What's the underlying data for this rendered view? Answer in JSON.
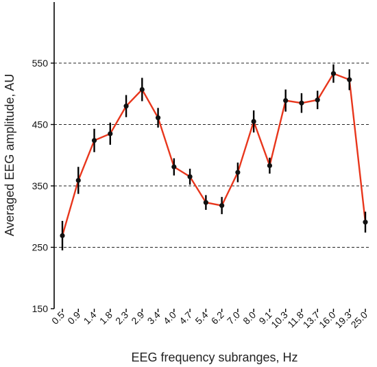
{
  "chart_data": {
    "type": "line",
    "xlabel": "EEG frequency subranges, Hz",
    "ylabel": "Averaged EEG amplitude, AU",
    "categories": [
      "0.5",
      "0.9",
      "1.4",
      "1.8",
      "2.3",
      "2.9",
      "3.4",
      "4.0",
      "4.7",
      "5.4",
      "6.2",
      "7.0",
      "8.0",
      "9.1",
      "10.3",
      "11.8",
      "13.7",
      "16.0",
      "19.3",
      "25.0"
    ],
    "yticks": [
      150,
      250,
      350,
      450,
      550
    ],
    "ylim": [
      150,
      650
    ],
    "grid": "dashed horizontal lines at 250, 350, 450, 550",
    "series": [
      {
        "values": [
          269,
          359,
          424,
          435,
          480,
          507,
          461,
          381,
          365,
          323,
          318,
          372,
          455,
          383,
          489,
          485,
          490,
          533,
          523,
          291
        ],
        "errors": [
          24,
          22,
          19,
          18,
          18,
          19,
          16,
          14,
          13,
          12,
          14,
          16,
          18,
          13,
          18,
          16,
          15,
          15,
          17,
          17
        ],
        "color": "#e8361c",
        "marker_color": "#111111"
      }
    ]
  }
}
